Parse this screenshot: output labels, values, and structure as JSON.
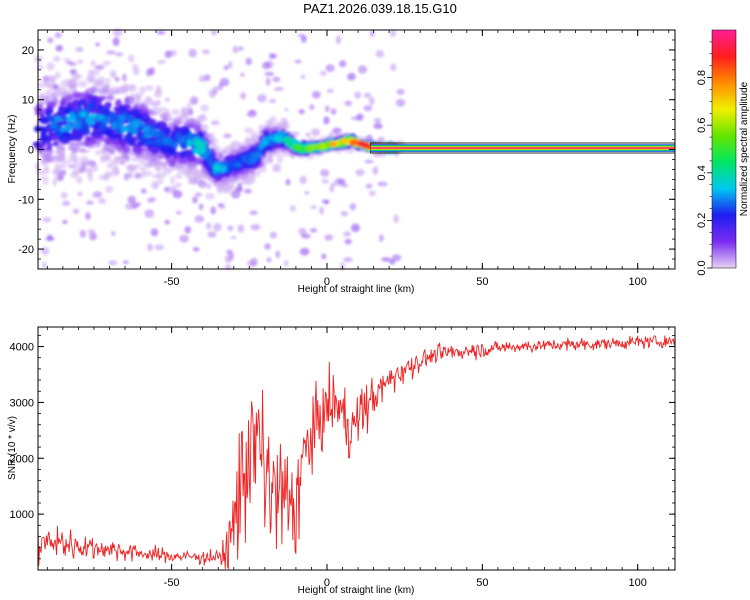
{
  "title": "PAZ1.2026.039.18.15.G10",
  "chart_data": [
    {
      "type": "heatmap",
      "xlabel": "Height of straight line (km)",
      "ylabel": "Frequency (Hz)",
      "xlim": [
        -93,
        112
      ],
      "ylim": [
        -24,
        24
      ],
      "x_ticks": [
        -50,
        0,
        50,
        100
      ],
      "y_ticks": [
        -20,
        -10,
        0,
        10,
        20
      ],
      "x_tick_labels": [
        "-50",
        "0",
        "50",
        "100"
      ],
      "y_tick_labels": [
        "-20",
        "-10",
        "0",
        "10",
        "20"
      ],
      "colorbar": {
        "label": "Normalized spectral amplitude",
        "range": [
          0,
          1
        ],
        "ticks": [
          0.0,
          0.2,
          0.4,
          0.6,
          0.8
        ],
        "tick_labels": [
          "0.0",
          "0.2",
          "0.4",
          "0.6",
          "0.8"
        ],
        "colormap": "rainbow",
        "stops": [
          "#e6d3f5",
          "#7a2cf0",
          "#1e1ef0",
          "#00c8f0",
          "#00e664",
          "#64e600",
          "#f0f000",
          "#ff8c00",
          "#ff1e1e",
          "#ff1e96"
        ]
      },
      "ridge": {
        "x": [
          -93,
          -85,
          -80,
          -75,
          -70,
          -65,
          -60,
          -55,
          -50,
          -45,
          -40,
          -37,
          -35,
          -32,
          -30,
          -27,
          -25,
          -22,
          -20,
          -17,
          -15,
          -12,
          -10,
          -7,
          -5,
          -2,
          0,
          3,
          5,
          8,
          10,
          13,
          15,
          18,
          20,
          25,
          50,
          75,
          100,
          112
        ],
        "freq": [
          4.0,
          5.0,
          6.0,
          6.5,
          5.5,
          5.0,
          4.0,
          2.5,
          1.0,
          1.5,
          0.5,
          -3.0,
          -4.0,
          -3.5,
          -3.0,
          -2.5,
          -2.0,
          -1.0,
          1.5,
          2.0,
          2.5,
          1.5,
          0.5,
          0.2,
          0.3,
          0.6,
          1.0,
          1.2,
          1.5,
          1.8,
          1.2,
          0.8,
          0.4,
          0.3,
          0.3,
          0.3,
          0.3,
          0.3,
          0.3,
          0.3
        ],
        "amplitude": [
          0.25,
          0.3,
          0.3,
          0.3,
          0.25,
          0.3,
          0.3,
          0.25,
          0.25,
          0.3,
          0.35,
          0.25,
          0.35,
          0.25,
          0.25,
          0.25,
          0.3,
          0.25,
          0.3,
          0.3,
          0.35,
          0.4,
          0.45,
          0.5,
          0.55,
          0.6,
          0.65,
          0.7,
          0.75,
          0.8,
          0.85,
          0.85,
          0.9,
          0.95,
          0.97,
          0.97,
          0.97,
          0.97,
          0.97,
          0.97
        ],
        "spread_hz": [
          9,
          9,
          9,
          9,
          9,
          9,
          8,
          8,
          7,
          7,
          6,
          5,
          4,
          4,
          4,
          4,
          4,
          4,
          4,
          3,
          3,
          2,
          2,
          1.5,
          1.5,
          1.2,
          1.2,
          1.2,
          1.2,
          1.2,
          1,
          1,
          1,
          0.8,
          0.8,
          0.8,
          0.8,
          0.8,
          0.8,
          0.8
        ]
      }
    },
    {
      "type": "line",
      "xlabel": "Height of straight line (km)",
      "ylabel": "SNR (10 * v/v)",
      "xlim": [
        -93,
        112
      ],
      "ylim": [
        0,
        4350
      ],
      "x_ticks": [
        -50,
        0,
        50,
        100
      ],
      "y_ticks": [
        1000,
        2000,
        3000,
        4000
      ],
      "x_tick_labels": [
        "-50",
        "0",
        "50",
        "100"
      ],
      "y_tick_labels": [
        "1000",
        "2000",
        "3000",
        "4000"
      ],
      "color": "#ee2222",
      "envelope": {
        "x": [
          -93,
          -90,
          -85,
          -80,
          -75,
          -70,
          -65,
          -60,
          -55,
          -50,
          -45,
          -40,
          -35,
          -32,
          -30,
          -28,
          -25,
          -22,
          -20,
          -18,
          -15,
          -12,
          -10,
          -8,
          -5,
          -2,
          0,
          3,
          5,
          8,
          10,
          12,
          15,
          18,
          20,
          25,
          30,
          35,
          40,
          50,
          60,
          70,
          80,
          90,
          100,
          112
        ],
        "mean": [
          450,
          500,
          480,
          430,
          400,
          380,
          340,
          300,
          270,
          250,
          240,
          230,
          230,
          320,
          800,
          1500,
          2200,
          2200,
          1800,
          1400,
          1300,
          1200,
          1100,
          1900,
          2400,
          2700,
          2900,
          3000,
          2800,
          2500,
          2700,
          2900,
          3100,
          3250,
          3400,
          3600,
          3750,
          3850,
          3900,
          3950,
          4000,
          4020,
          4040,
          4050,
          4080,
          4100
        ],
        "noise": [
          280,
          300,
          280,
          250,
          200,
          170,
          150,
          130,
          120,
          110,
          110,
          110,
          110,
          400,
          800,
          1100,
          1200,
          1200,
          1200,
          1100,
          1000,
          950,
          900,
          700,
          700,
          600,
          550,
          500,
          500,
          500,
          450,
          400,
          350,
          300,
          250,
          200,
          170,
          150,
          140,
          120,
          110,
          100,
          100,
          100,
          100,
          100
        ]
      }
    }
  ]
}
